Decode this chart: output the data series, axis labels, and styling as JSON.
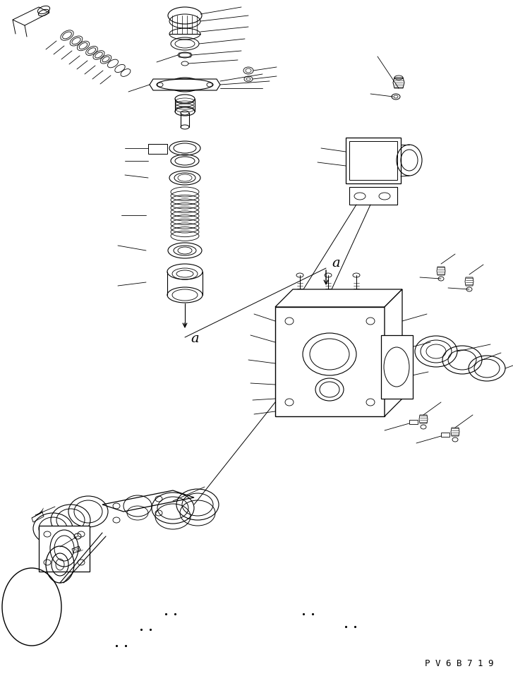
{
  "background_color": "#ffffff",
  "line_color": "#000000",
  "watermark_text": "P V 6 B 7 1 9",
  "figsize": [
    7.27,
    9.58
  ],
  "dpi": 100,
  "lw": 0.8
}
